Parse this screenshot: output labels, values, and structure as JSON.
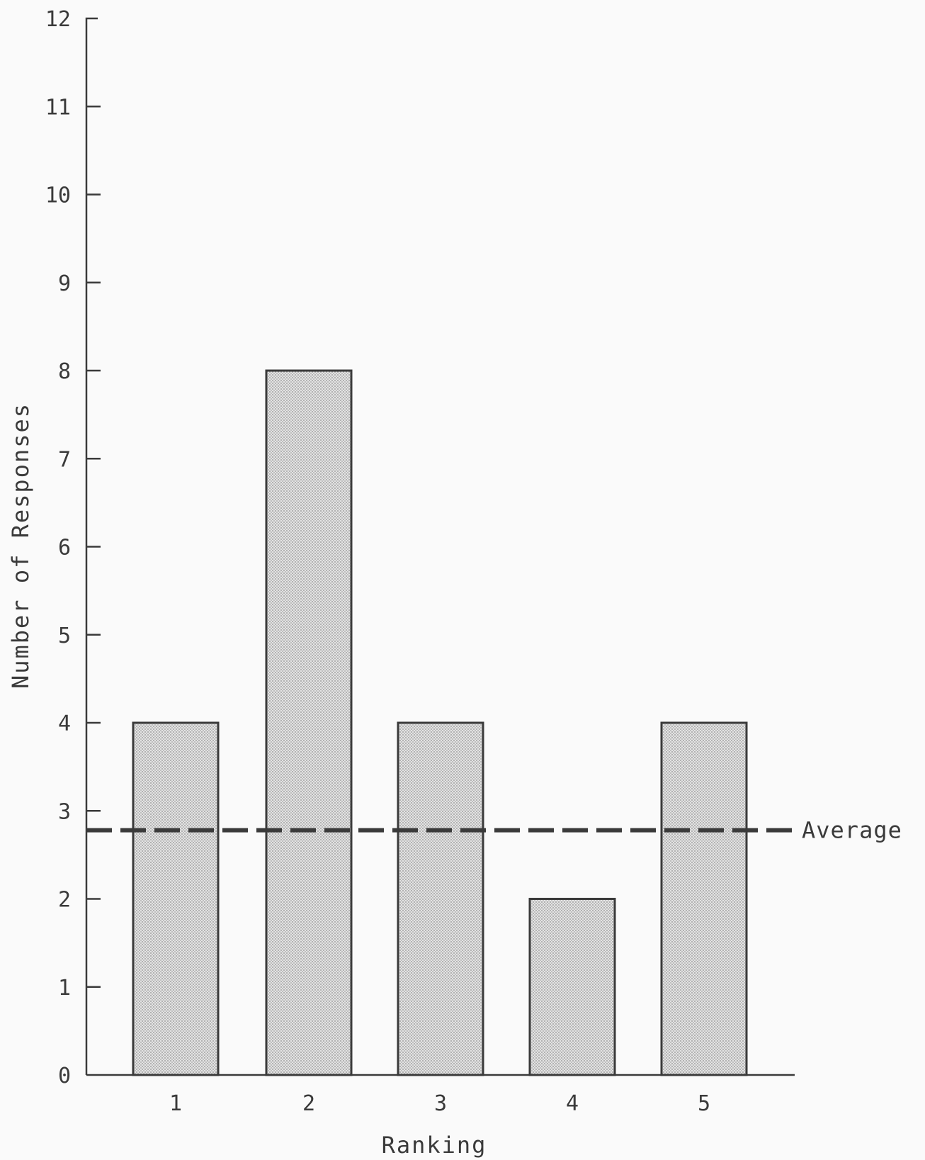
{
  "chart_data": {
    "type": "bar",
    "categories": [
      "1",
      "2",
      "3",
      "4",
      "5"
    ],
    "values": [
      4,
      8,
      4,
      2,
      4
    ],
    "xlabel": "Ranking",
    "ylabel": "Number of Responses",
    "ylim": [
      0,
      12
    ],
    "yticks": [
      "0",
      "1",
      "2",
      "3",
      "4",
      "5",
      "6",
      "7",
      "8",
      "9",
      "10",
      "11",
      "12"
    ],
    "reference_line": {
      "label": "Average",
      "value": 2.78,
      "style": "dashed"
    },
    "grid": false,
    "colors": {
      "bar_fill": "#d6d6d6",
      "stroke": "#3a3a3a",
      "background": "#fafafa"
    }
  }
}
